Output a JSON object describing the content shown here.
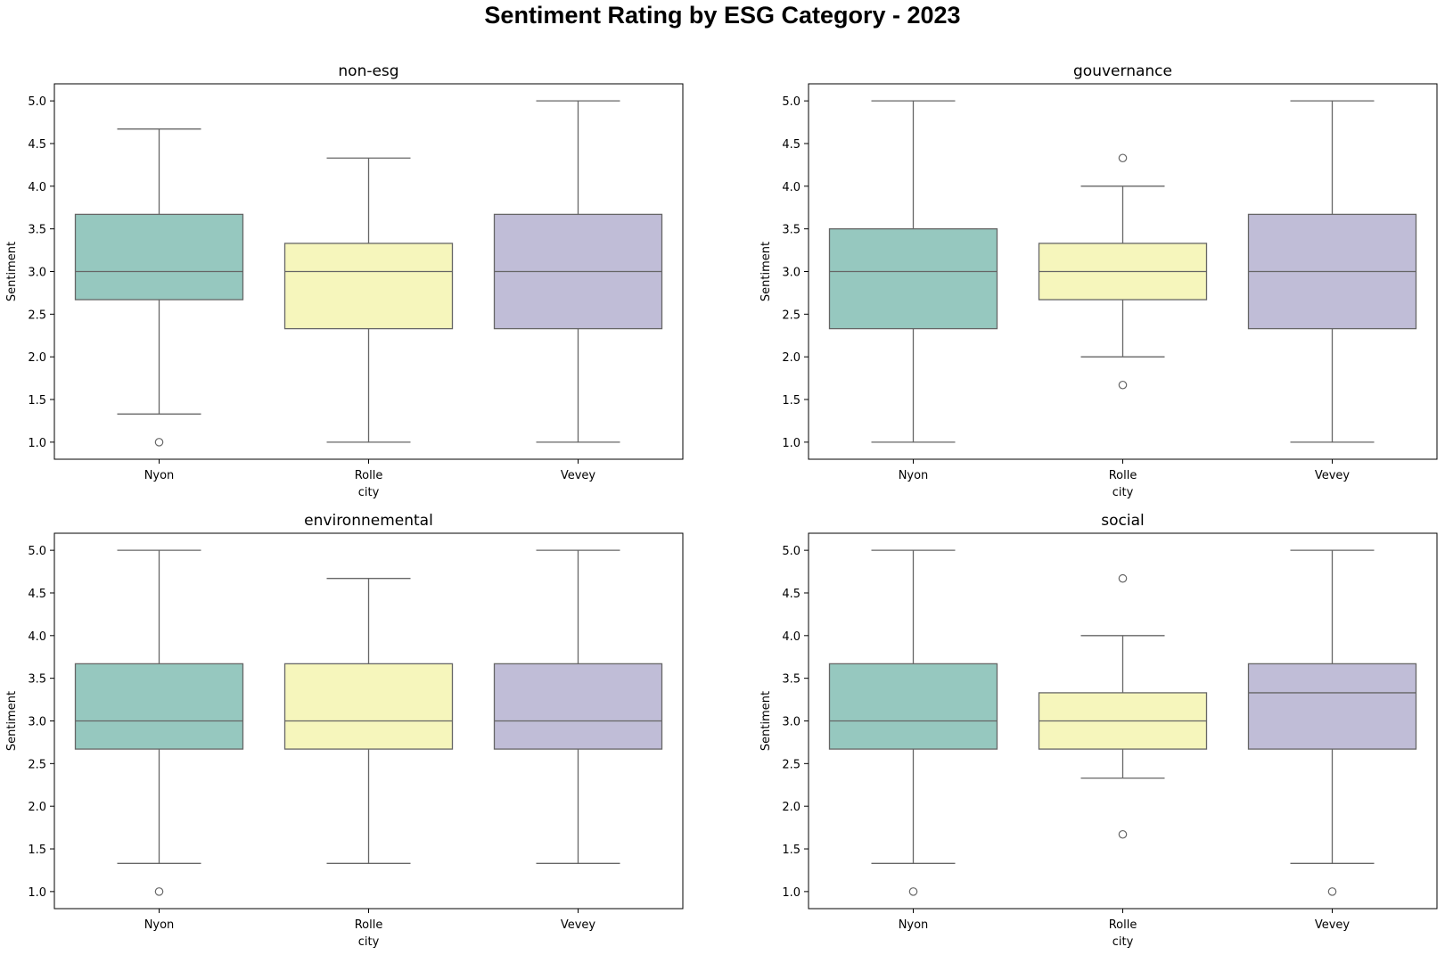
{
  "figure": {
    "suptitle": "Sentiment Rating by ESG Category - 2023"
  },
  "chart_data": [
    {
      "type": "box",
      "title": "non-esg",
      "xlabel": "city",
      "ylabel": "Sentiment",
      "categories": [
        "Nyon",
        "Rolle",
        "Vevey"
      ],
      "ylim": [
        0.8,
        5.2
      ],
      "yticks": [
        "1.0",
        "1.5",
        "2.0",
        "2.5",
        "3.0",
        "3.5",
        "4.0",
        "4.5",
        "5.0"
      ],
      "boxes": [
        {
          "whisker_low": 1.33,
          "q1": 2.67,
          "median": 3.0,
          "q3": 3.67,
          "whisker_high": 4.67,
          "outliers": [
            1.0
          ]
        },
        {
          "whisker_low": 1.0,
          "q1": 2.33,
          "median": 3.0,
          "q3": 3.33,
          "whisker_high": 4.33,
          "outliers": []
        },
        {
          "whisker_low": 1.0,
          "q1": 2.33,
          "median": 3.0,
          "q3": 3.67,
          "whisker_high": 5.0,
          "outliers": []
        }
      ]
    },
    {
      "type": "box",
      "title": "gouvernance",
      "xlabel": "city",
      "ylabel": "Sentiment",
      "categories": [
        "Nyon",
        "Rolle",
        "Vevey"
      ],
      "ylim": [
        0.8,
        5.2
      ],
      "yticks": [
        "1.0",
        "1.5",
        "2.0",
        "2.5",
        "3.0",
        "3.5",
        "4.0",
        "4.5",
        "5.0"
      ],
      "boxes": [
        {
          "whisker_low": 1.0,
          "q1": 2.33,
          "median": 3.0,
          "q3": 3.5,
          "whisker_high": 5.0,
          "outliers": []
        },
        {
          "whisker_low": 2.0,
          "q1": 2.67,
          "median": 3.0,
          "q3": 3.33,
          "whisker_high": 4.0,
          "outliers": [
            4.33,
            1.67
          ]
        },
        {
          "whisker_low": 1.0,
          "q1": 2.33,
          "median": 3.0,
          "q3": 3.67,
          "whisker_high": 5.0,
          "outliers": []
        }
      ]
    },
    {
      "type": "box",
      "title": "environnemental",
      "xlabel": "city",
      "ylabel": "Sentiment",
      "categories": [
        "Nyon",
        "Rolle",
        "Vevey"
      ],
      "ylim": [
        0.8,
        5.2
      ],
      "yticks": [
        "1.0",
        "1.5",
        "2.0",
        "2.5",
        "3.0",
        "3.5",
        "4.0",
        "4.5",
        "5.0"
      ],
      "boxes": [
        {
          "whisker_low": 1.33,
          "q1": 2.67,
          "median": 3.0,
          "q3": 3.67,
          "whisker_high": 5.0,
          "outliers": [
            1.0
          ]
        },
        {
          "whisker_low": 1.33,
          "q1": 2.67,
          "median": 3.0,
          "q3": 3.67,
          "whisker_high": 4.67,
          "outliers": []
        },
        {
          "whisker_low": 1.33,
          "q1": 2.67,
          "median": 3.0,
          "q3": 3.67,
          "whisker_high": 5.0,
          "outliers": []
        }
      ]
    },
    {
      "type": "box",
      "title": "social",
      "xlabel": "city",
      "ylabel": "Sentiment",
      "categories": [
        "Nyon",
        "Rolle",
        "Vevey"
      ],
      "ylim": [
        0.8,
        5.2
      ],
      "yticks": [
        "1.0",
        "1.5",
        "2.0",
        "2.5",
        "3.0",
        "3.5",
        "4.0",
        "4.5",
        "5.0"
      ],
      "boxes": [
        {
          "whisker_low": 1.33,
          "q1": 2.67,
          "median": 3.0,
          "q3": 3.67,
          "whisker_high": 5.0,
          "outliers": [
            1.0
          ]
        },
        {
          "whisker_low": 2.33,
          "q1": 2.67,
          "median": 3.0,
          "q3": 3.33,
          "whisker_high": 4.0,
          "outliers": [
            4.67,
            1.67
          ]
        },
        {
          "whisker_low": 1.33,
          "q1": 2.67,
          "median": 3.33,
          "q3": 3.67,
          "whisker_high": 5.0,
          "outliers": [
            1.0
          ]
        }
      ]
    }
  ],
  "colors": {
    "box_fills": [
      "#96c8bf",
      "#f6f6bc",
      "#c0bdd7"
    ],
    "box_line": "#666666",
    "axis_frame": "#000000"
  }
}
